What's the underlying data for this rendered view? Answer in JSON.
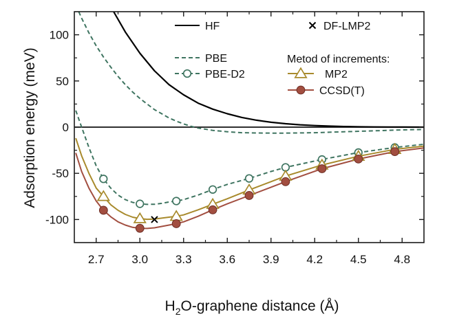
{
  "chart_data": {
    "type": "line",
    "xlabel_parts": [
      "H",
      "2",
      "O-graphene distance (Å)"
    ],
    "ylabel": "Adsorption energy (meV)",
    "xlim": [
      2.55,
      4.95
    ],
    "ylim": [
      -125,
      125
    ],
    "x_ticks": [
      2.7,
      3.0,
      3.3,
      3.6,
      3.9,
      4.2,
      4.5,
      4.8
    ],
    "x_tick_labels": [
      "2.7",
      "3.0",
      "3.3",
      "3.6",
      "3.9",
      "4.2",
      "4.5",
      "4.8"
    ],
    "y_ticks": [
      -100,
      -50,
      0,
      50,
      100
    ],
    "y_tick_labels": [
      "-100",
      "-50",
      "0",
      "50",
      "100"
    ],
    "zero_line": true,
    "legend_heading": "Metod of increments:",
    "series": [
      {
        "name": "HF",
        "style": "solid",
        "color": "#000000",
        "marker": "none",
        "x": [
          2.82,
          2.9,
          3.0,
          3.1,
          3.2,
          3.3,
          3.4,
          3.5,
          3.6,
          3.7,
          3.8,
          3.9,
          4.0,
          4.1,
          4.2,
          4.3,
          4.4,
          4.5,
          4.6,
          4.7,
          4.8,
          4.95
        ],
        "y": [
          125,
          103,
          80,
          61,
          46,
          35,
          26,
          19.5,
          14.5,
          10.5,
          7.5,
          5.3,
          3.7,
          2.5,
          1.7,
          1.1,
          0.7,
          0.4,
          0.25,
          0.15,
          0.08,
          0
        ]
      },
      {
        "name": "PBE",
        "style": "dashed",
        "color": "#3e7460",
        "marker": "none",
        "x": [
          2.58,
          2.6,
          2.65,
          2.7,
          2.75,
          2.8,
          2.85,
          2.9,
          2.95,
          3.0,
          3.05,
          3.1,
          3.15,
          3.2,
          3.25,
          3.3,
          3.35,
          3.4,
          3.5,
          3.6,
          3.7,
          3.8,
          3.9,
          4.0,
          4.2,
          4.4,
          4.6,
          4.8,
          4.95
        ],
        "y": [
          125,
          118,
          102,
          88,
          76,
          65,
          55,
          46,
          38,
          31,
          25,
          19,
          14.5,
          10,
          6.5,
          3.5,
          1,
          -1,
          -3.5,
          -5,
          -6,
          -6.3,
          -6.5,
          -6.5,
          -6,
          -5,
          -4,
          -3,
          -2.5
        ]
      },
      {
        "name": "PBE-D2",
        "style": "dashed",
        "color": "#3e7460",
        "marker": "open-circle",
        "x": [
          2.56,
          2.6,
          2.65,
          2.7,
          2.75,
          2.8,
          2.85,
          2.9,
          2.95,
          3.0,
          3.05,
          3.1,
          3.15,
          3.2,
          3.25,
          3.3,
          3.4,
          3.5,
          3.6,
          3.75,
          3.9,
          4.0,
          4.25,
          4.5,
          4.75,
          4.95
        ],
        "y": [
          18,
          0,
          -22,
          -42,
          -56,
          -66,
          -73.5,
          -78.5,
          -81.5,
          -83,
          -83.6,
          -83.5,
          -82.5,
          -81,
          -80,
          -78.5,
          -73.5,
          -67.5,
          -62,
          -55.5,
          -48,
          -43.5,
          -35,
          -27.5,
          -22,
          -18.5
        ],
        "marker_x": [
          2.75,
          3.0,
          3.25,
          3.5,
          3.75,
          4.0,
          4.25,
          4.5,
          4.75
        ],
        "marker_y": [
          -56,
          -83,
          -80,
          -67.5,
          -55.5,
          -43.5,
          -35,
          -27.5,
          -22
        ]
      },
      {
        "name": "MP2",
        "style": "solid",
        "color": "#a88a2c",
        "marker": "open-triangle",
        "x": [
          2.56,
          2.6,
          2.65,
          2.7,
          2.75,
          2.8,
          2.85,
          2.9,
          2.95,
          3.0,
          3.05,
          3.1,
          3.15,
          3.2,
          3.25,
          3.3,
          3.4,
          3.5,
          3.6,
          3.75,
          3.9,
          4.0,
          4.25,
          4.5,
          4.75,
          4.95
        ],
        "y": [
          -12,
          -31,
          -50,
          -66,
          -75,
          -84,
          -90,
          -94.5,
          -97.5,
          -99,
          -99.8,
          -99.5,
          -98.5,
          -97.5,
          -96.5,
          -95,
          -89.5,
          -83.5,
          -77.5,
          -68,
          -59,
          -53,
          -41,
          -31.5,
          -24,
          -20.5
        ],
        "marker_x": [
          2.75,
          3.0,
          3.25,
          3.5,
          3.75,
          4.0,
          4.25,
          4.5,
          4.75
        ],
        "marker_y": [
          -75,
          -99,
          -96.5,
          -83.5,
          -68,
          -53,
          -41,
          -31.5,
          -24
        ]
      },
      {
        "name": "CCSD(T)",
        "style": "solid",
        "color": "#a24e40",
        "marker": "filled-circle",
        "x": [
          2.56,
          2.6,
          2.65,
          2.7,
          2.75,
          2.8,
          2.85,
          2.9,
          2.95,
          3.0,
          3.05,
          3.1,
          3.15,
          3.2,
          3.25,
          3.3,
          3.4,
          3.5,
          3.6,
          3.75,
          3.9,
          4.0,
          4.25,
          4.5,
          4.75,
          4.95
        ],
        "y": [
          -28,
          -48,
          -66,
          -80,
          -90,
          -97,
          -102.5,
          -106,
          -108.5,
          -109.5,
          -109.7,
          -109,
          -107.5,
          -106,
          -104.5,
          -102.5,
          -96.5,
          -89.5,
          -83,
          -74,
          -65,
          -59,
          -45,
          -34.5,
          -26.5,
          -22.5
        ],
        "marker_x": [
          2.75,
          3.0,
          3.25,
          3.5,
          3.75,
          4.0,
          4.25,
          4.5,
          4.75
        ],
        "marker_y": [
          -90,
          -109.5,
          -104.5,
          -89.5,
          -74,
          -59,
          -45,
          -34.5,
          -26.5
        ]
      },
      {
        "name": "DF-LMP2",
        "style": "none",
        "color": "#000000",
        "marker": "cross",
        "x": [
          3.1
        ],
        "y": [
          -100
        ]
      }
    ]
  }
}
